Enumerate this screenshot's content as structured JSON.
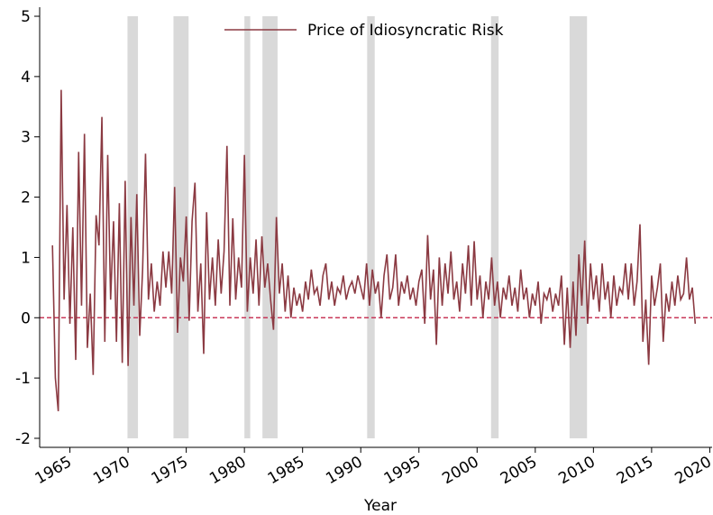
{
  "chart_data": {
    "type": "line",
    "xlabel": "Year",
    "xlim": [
      1962.4,
      2020.2
    ],
    "ylim": [
      -2.15,
      5.15
    ],
    "xticks": [
      1965,
      1970,
      1975,
      1980,
      1985,
      1990,
      1995,
      2000,
      2005,
      2010,
      2015,
      2020
    ],
    "yticks": [
      -2,
      -1,
      0,
      1,
      2,
      3,
      4,
      5
    ],
    "legend": "upper center",
    "hline": {
      "value": 0,
      "color": "#c8385a"
    },
    "shading": {
      "color": "#d9d9d9",
      "spans": [
        [
          1969.95,
          1970.85
        ],
        [
          1973.9,
          1975.2
        ],
        [
          1980.0,
          1980.5
        ],
        [
          1981.55,
          1982.85
        ],
        [
          1990.55,
          1991.2
        ],
        [
          2001.2,
          2001.85
        ],
        [
          2007.95,
          2009.45
        ]
      ]
    },
    "x": [
      1963.5,
      1963.75,
      1964,
      1964.25,
      1964.5,
      1964.75,
      1965,
      1965.25,
      1965.5,
      1965.75,
      1966,
      1966.25,
      1966.5,
      1966.75,
      1967,
      1967.25,
      1967.5,
      1967.75,
      1968,
      1968.25,
      1968.5,
      1968.75,
      1969,
      1969.25,
      1969.5,
      1969.75,
      1970,
      1970.25,
      1970.5,
      1970.75,
      1971,
      1971.25,
      1971.5,
      1971.75,
      1972,
      1972.25,
      1972.5,
      1972.75,
      1973,
      1973.25,
      1973.5,
      1973.75,
      1974,
      1974.25,
      1974.5,
      1974.75,
      1975,
      1975.25,
      1975.5,
      1975.75,
      1976,
      1976.25,
      1976.5,
      1976.75,
      1977,
      1977.25,
      1977.5,
      1977.75,
      1978,
      1978.25,
      1978.5,
      1978.75,
      1979,
      1979.25,
      1979.5,
      1979.75,
      1980,
      1980.25,
      1980.5,
      1980.75,
      1981,
      1981.25,
      1981.5,
      1981.75,
      1982,
      1982.25,
      1982.5,
      1982.75,
      1983,
      1983.25,
      1983.5,
      1983.75,
      1984,
      1984.25,
      1984.5,
      1984.75,
      1985,
      1985.25,
      1985.5,
      1985.75,
      1986,
      1986.25,
      1986.5,
      1986.75,
      1987,
      1987.25,
      1987.5,
      1987.75,
      1988,
      1988.25,
      1988.5,
      1988.75,
      1989,
      1989.25,
      1989.5,
      1989.75,
      1990,
      1990.25,
      1990.5,
      1990.75,
      1991,
      1991.25,
      1991.5,
      1991.75,
      1992,
      1992.25,
      1992.5,
      1992.75,
      1993,
      1993.25,
      1993.5,
      1993.75,
      1994,
      1994.25,
      1994.5,
      1994.75,
      1995,
      1995.25,
      1995.5,
      1995.75,
      1996,
      1996.25,
      1996.5,
      1996.75,
      1997,
      1997.25,
      1997.5,
      1997.75,
      1998,
      1998.25,
      1998.5,
      1998.75,
      1999,
      1999.25,
      1999.5,
      1999.75,
      2000,
      2000.25,
      2000.5,
      2000.75,
      2001,
      2001.25,
      2001.5,
      2001.75,
      2002,
      2002.25,
      2002.5,
      2002.75,
      2003,
      2003.25,
      2003.5,
      2003.75,
      2004,
      2004.25,
      2004.5,
      2004.75,
      2005,
      2005.25,
      2005.5,
      2005.75,
      2006,
      2006.25,
      2006.5,
      2006.75,
      2007,
      2007.25,
      2007.5,
      2007.75,
      2008,
      2008.25,
      2008.5,
      2008.75,
      2009,
      2009.25,
      2009.5,
      2009.75,
      2010,
      2010.25,
      2010.5,
      2010.75,
      2011,
      2011.25,
      2011.5,
      2011.75,
      2012,
      2012.25,
      2012.5,
      2012.75,
      2013,
      2013.25,
      2013.5,
      2013.75,
      2014,
      2014.25,
      2014.5,
      2014.75,
      2015,
      2015.25,
      2015.5,
      2015.75,
      2016,
      2016.25,
      2016.5,
      2016.75,
      2017,
      2017.25,
      2017.5,
      2017.75,
      2018,
      2018.25,
      2018.5,
      2018.75
    ],
    "series": [
      {
        "name": "Price of Idiosyncratic Risk",
        "color": "#8b3a42",
        "values": [
          1.2,
          -1.0,
          -1.55,
          3.78,
          0.3,
          1.87,
          -0.1,
          1.5,
          -0.7,
          2.75,
          0.2,
          3.05,
          -0.5,
          0.4,
          -0.95,
          1.7,
          1.2,
          3.33,
          -0.4,
          2.7,
          0.3,
          1.6,
          -0.4,
          1.9,
          -0.75,
          2.27,
          -0.8,
          1.67,
          0.2,
          2.05,
          -0.3,
          0.8,
          2.72,
          0.3,
          0.9,
          0.1,
          0.6,
          0.2,
          1.1,
          0.5,
          1.1,
          0.4,
          2.17,
          -0.25,
          1.0,
          0.6,
          1.68,
          -0.05,
          1.6,
          2.24,
          0.1,
          0.9,
          -0.6,
          1.75,
          0.3,
          1.0,
          0.2,
          1.3,
          0.4,
          1.1,
          2.85,
          0.2,
          1.65,
          0.3,
          1.0,
          0.5,
          2.7,
          0.1,
          1.0,
          0.4,
          1.3,
          0.2,
          1.35,
          0.5,
          0.9,
          0.3,
          -0.2,
          1.67,
          0.4,
          0.9,
          0.1,
          0.7,
          0.0,
          0.5,
          0.2,
          0.4,
          0.1,
          0.6,
          0.3,
          0.8,
          0.4,
          0.5,
          0.2,
          0.7,
          0.9,
          0.3,
          0.6,
          0.2,
          0.5,
          0.4,
          0.7,
          0.3,
          0.5,
          0.6,
          0.4,
          0.7,
          0.5,
          0.3,
          0.9,
          0.2,
          0.8,
          0.4,
          0.6,
          0.0,
          0.7,
          1.05,
          0.3,
          0.5,
          1.05,
          0.2,
          0.6,
          0.4,
          0.7,
          0.3,
          0.5,
          0.2,
          0.6,
          0.8,
          -0.1,
          1.37,
          0.3,
          0.8,
          -0.45,
          1.0,
          0.2,
          0.9,
          0.4,
          1.1,
          0.3,
          0.6,
          0.1,
          0.9,
          0.4,
          1.2,
          0.2,
          1.27,
          0.3,
          0.7,
          0.0,
          0.6,
          0.3,
          1.0,
          0.2,
          0.6,
          0.0,
          0.5,
          0.3,
          0.7,
          0.2,
          0.5,
          0.1,
          0.8,
          0.3,
          0.5,
          0.0,
          0.4,
          0.2,
          0.6,
          -0.1,
          0.4,
          0.3,
          0.5,
          0.1,
          0.4,
          0.2,
          0.7,
          -0.45,
          0.5,
          -0.5,
          0.6,
          -0.3,
          1.05,
          0.2,
          1.28,
          -0.1,
          0.9,
          0.3,
          0.7,
          0.1,
          0.9,
          0.3,
          0.6,
          0.0,
          0.7,
          0.2,
          0.5,
          0.4,
          0.9,
          0.3,
          0.9,
          0.2,
          0.6,
          1.55,
          -0.4,
          0.3,
          -0.78,
          0.7,
          0.2,
          0.5,
          0.9,
          -0.4,
          0.4,
          0.1,
          0.6,
          0.2,
          0.7,
          0.3,
          0.4,
          1.0,
          0.3,
          0.5,
          -0.1
        ]
      }
    ]
  }
}
